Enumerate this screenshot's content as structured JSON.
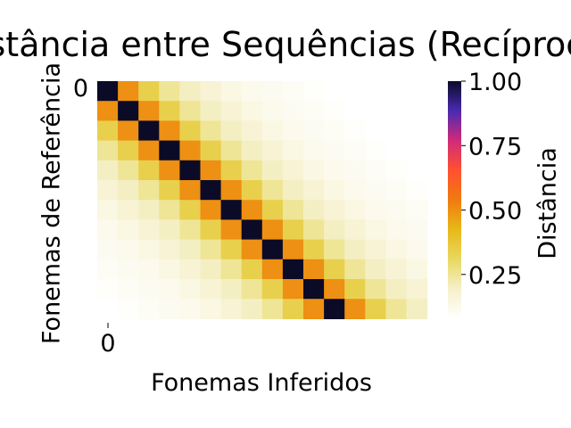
{
  "chart_data": {
    "type": "heatmap",
    "title": "Distância entre Sequências (Recíproca)",
    "xlabel": "Fonemas Inferidos",
    "ylabel": "Fonemas de Referência",
    "x_ticks": [
      "0"
    ],
    "y_ticks": [
      "0"
    ],
    "colorbar": {
      "label": "Distância",
      "ticks": [
        "0.25",
        "0.50",
        "0.75",
        "1.00"
      ],
      "range": [
        0.08,
        1.0
      ],
      "colors": [
        "#ffffff",
        "#f5f0c8",
        "#e8d860",
        "#e8b818",
        "#f07a10",
        "#ff5030",
        "#d02a7a",
        "#4a2ab0",
        "#0b0b28"
      ]
    },
    "cells_shape": [
      12,
      16
    ],
    "values": [
      [
        1.0,
        0.5,
        0.34,
        0.25,
        0.2,
        0.17,
        0.14,
        0.12,
        0.11,
        0.1,
        0.09,
        0.08,
        0.08,
        0.08,
        0.08,
        0.08
      ],
      [
        0.5,
        1.0,
        0.5,
        0.34,
        0.25,
        0.2,
        0.17,
        0.14,
        0.12,
        0.11,
        0.1,
        0.09,
        0.08,
        0.08,
        0.08,
        0.08
      ],
      [
        0.34,
        0.5,
        1.0,
        0.5,
        0.34,
        0.25,
        0.2,
        0.17,
        0.14,
        0.12,
        0.11,
        0.1,
        0.09,
        0.08,
        0.08,
        0.08
      ],
      [
        0.25,
        0.34,
        0.5,
        1.0,
        0.5,
        0.34,
        0.25,
        0.2,
        0.17,
        0.14,
        0.12,
        0.11,
        0.1,
        0.09,
        0.08,
        0.08
      ],
      [
        0.2,
        0.25,
        0.34,
        0.5,
        1.0,
        0.5,
        0.34,
        0.25,
        0.2,
        0.17,
        0.14,
        0.12,
        0.11,
        0.1,
        0.09,
        0.08
      ],
      [
        0.17,
        0.2,
        0.25,
        0.34,
        0.5,
        1.0,
        0.5,
        0.34,
        0.25,
        0.2,
        0.17,
        0.14,
        0.12,
        0.11,
        0.1,
        0.09
      ],
      [
        0.14,
        0.17,
        0.2,
        0.25,
        0.34,
        0.5,
        1.0,
        0.5,
        0.34,
        0.25,
        0.2,
        0.17,
        0.14,
        0.12,
        0.11,
        0.1
      ],
      [
        0.12,
        0.14,
        0.17,
        0.2,
        0.25,
        0.34,
        0.5,
        1.0,
        0.5,
        0.34,
        0.25,
        0.2,
        0.17,
        0.14,
        0.12,
        0.11
      ],
      [
        0.11,
        0.12,
        0.14,
        0.17,
        0.2,
        0.25,
        0.34,
        0.5,
        1.0,
        0.5,
        0.34,
        0.25,
        0.2,
        0.17,
        0.14,
        0.12
      ],
      [
        0.1,
        0.11,
        0.12,
        0.14,
        0.17,
        0.2,
        0.25,
        0.34,
        0.5,
        1.0,
        0.5,
        0.34,
        0.25,
        0.2,
        0.17,
        0.14
      ],
      [
        0.09,
        0.1,
        0.11,
        0.12,
        0.14,
        0.17,
        0.2,
        0.25,
        0.34,
        0.5,
        1.0,
        0.5,
        0.34,
        0.25,
        0.2,
        0.17
      ],
      [
        0.08,
        0.09,
        0.1,
        0.11,
        0.12,
        0.14,
        0.17,
        0.2,
        0.25,
        0.34,
        0.5,
        1.0,
        0.5,
        0.34,
        0.25,
        0.2
      ]
    ]
  }
}
